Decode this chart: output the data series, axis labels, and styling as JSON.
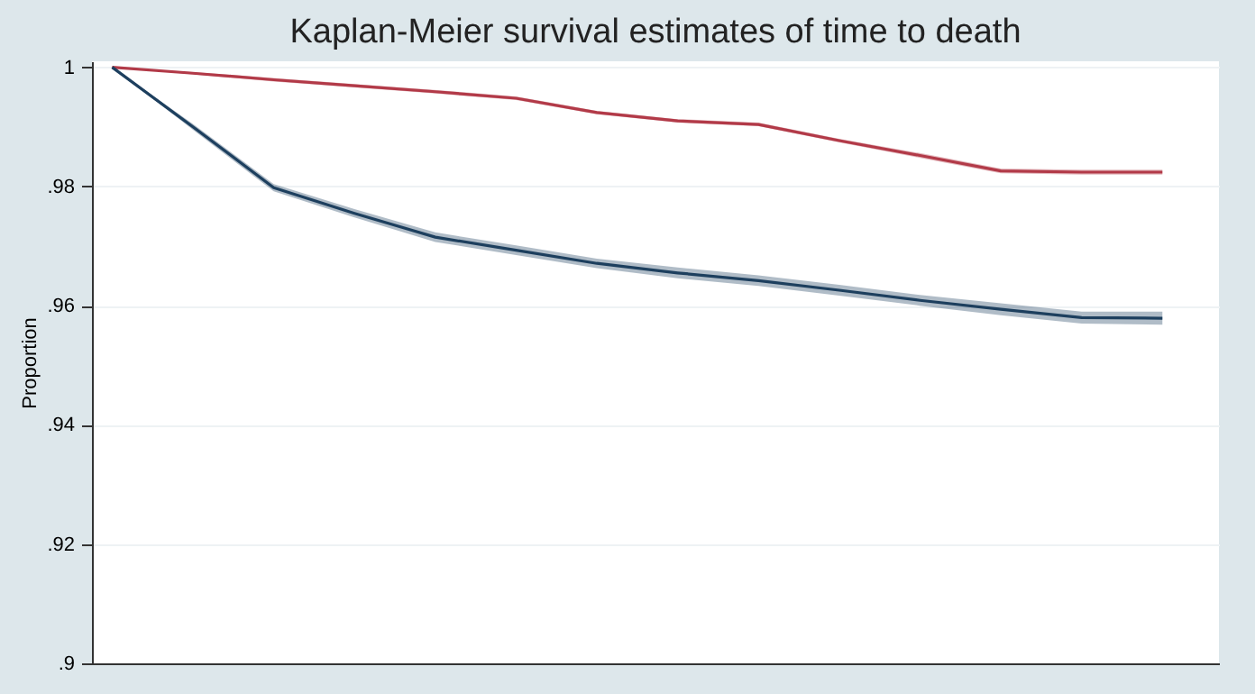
{
  "chart_data": {
    "type": "line",
    "title": "Kaplan-Meier survival estimates of time to death",
    "ylabel": "Proportion",
    "categories": [
      null,
      null,
      null,
      null,
      null,
      null,
      null,
      null,
      null,
      null,
      null,
      null,
      null,
      null
    ],
    "ylim": [
      0.9,
      1.001
    ],
    "yticks": [
      {
        "value": 0.9,
        "label": ".9"
      },
      {
        "value": 0.92,
        "label": ".92"
      },
      {
        "value": 0.94,
        "label": ".94"
      },
      {
        "value": 0.96,
        "label": ".96"
      },
      {
        "value": 0.98,
        "label": ".98"
      },
      1
    ],
    "grid": "y",
    "tick_labels": "y",
    "series": [
      {
        "color": "#b23a48",
        "values": [
          1,
          0.999,
          0.9979,
          0.9969,
          0.9959,
          0.9948,
          0.9924,
          0.991,
          0.9904,
          0.9877,
          0.9852,
          0.9826,
          0.9824,
          0.9824
        ],
        "lower": [
          1,
          0.9988,
          0.9976,
          0.9966,
          0.9956,
          0.9945,
          0.9921,
          0.9907,
          0.9901,
          0.9874,
          0.9848,
          0.9822,
          0.982,
          0.982
        ],
        "upper": [
          1,
          0.9992,
          0.9982,
          0.9972,
          0.9962,
          0.9951,
          0.9927,
          0.9913,
          0.9907,
          0.988,
          0.9856,
          0.983,
          0.9828,
          0.9828
        ]
      },
      {
        "color": "#1d3f5e",
        "values": [
          1,
          0.99,
          0.9798,
          0.9755,
          0.9715,
          0.9693,
          0.9671,
          0.9655,
          0.9642,
          0.9626,
          0.9609,
          0.9594,
          0.958,
          0.9579
        ],
        "lower": [
          1,
          0.9895,
          0.9792,
          0.9748,
          0.9707,
          0.9685,
          0.9663,
          0.9646,
          0.9633,
          0.9617,
          0.96,
          0.9584,
          0.957,
          0.9568
        ],
        "upper": [
          1,
          0.9905,
          0.9804,
          0.9762,
          0.9723,
          0.9701,
          0.9679,
          0.9664,
          0.9651,
          0.9635,
          0.9618,
          0.9604,
          0.959,
          0.959
        ]
      }
    ]
  }
}
